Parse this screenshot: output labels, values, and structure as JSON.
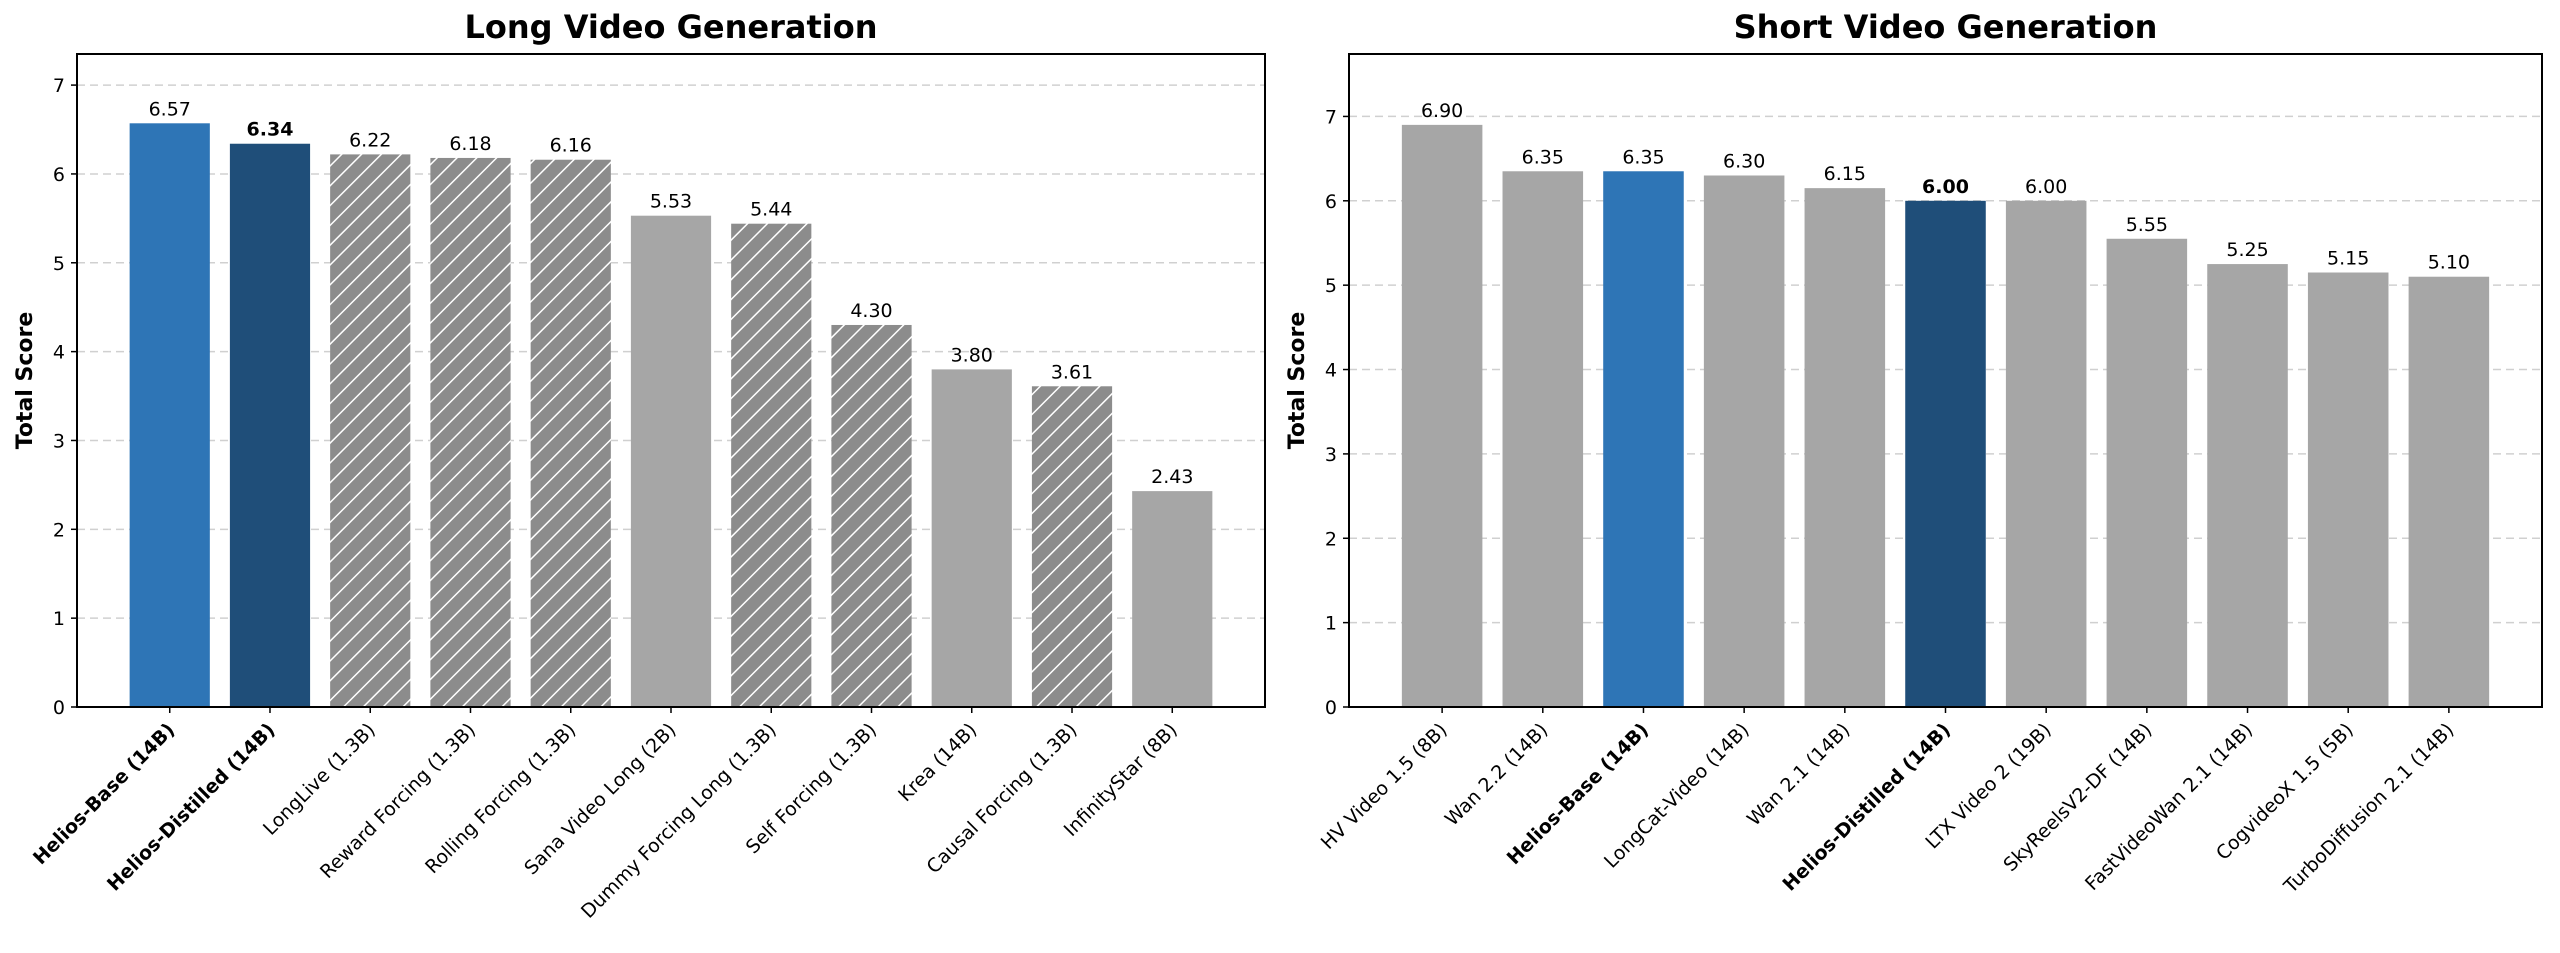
{
  "chart_data": [
    {
      "type": "bar",
      "title": "Long Video Generation",
      "y_label": "Total Score",
      "categories": [
        "Helios-Base (14B)",
        "Helios-Distilled (14B)",
        "LongLive (1.3B)",
        "Reward Forcing (1.3B)",
        "Rolling Forcing (1.3B)",
        "Sana Video Long (2B)",
        "Dummy Forcing Long (1.3B)",
        "Self Forcing (1.3B)",
        "Krea (14B)",
        "Causal Forcing (1.3B)",
        "InfinityStar (8B)"
      ],
      "values": [
        6.57,
        6.34,
        6.22,
        6.18,
        6.16,
        5.53,
        5.44,
        4.3,
        3.8,
        3.61,
        2.43
      ],
      "value_labels": [
        "6.57",
        "6.34",
        "6.22",
        "6.18",
        "6.16",
        "5.53",
        "5.44",
        "4.30",
        "3.80",
        "3.61",
        "2.43"
      ],
      "colors": [
        "#2e75b6",
        "#1f4e79",
        "#8c8c8c",
        "#8c8c8c",
        "#8c8c8c",
        "#a6a6a6",
        "#8c8c8c",
        "#8c8c8c",
        "#a6a6a6",
        "#8c8c8c",
        "#a6a6a6"
      ],
      "hatched": [
        false,
        false,
        true,
        true,
        true,
        false,
        true,
        true,
        false,
        true,
        false
      ],
      "bold_categories": [
        true,
        true,
        false,
        false,
        false,
        false,
        false,
        false,
        false,
        false,
        false
      ],
      "bold_value_labels": [
        false,
        true,
        false,
        false,
        false,
        false,
        false,
        false,
        false,
        false,
        false
      ],
      "ylim": [
        0,
        7.35
      ],
      "yticks": [
        0,
        1,
        2,
        3,
        4,
        5,
        6,
        7
      ],
      "grid": true
    },
    {
      "type": "bar",
      "title": "Short Video Generation",
      "y_label": "Total Score",
      "categories": [
        "HV Video 1.5 (8B)",
        "Wan 2.2 (14B)",
        "Helios-Base (14B)",
        "LongCat-Video (14B)",
        "Wan 2.1 (14B)",
        "Helios-Distilled (14B)",
        "LTX Video 2 (19B)",
        "SkyReelsV2-DF (14B)",
        "FastVideoWan 2.1 (14B)",
        "CogvideoX 1.5 (5B)",
        "TurboDiffusion 2.1 (14B)"
      ],
      "values": [
        6.9,
        6.35,
        6.35,
        6.3,
        6.15,
        6.0,
        6.0,
        5.55,
        5.25,
        5.15,
        5.1
      ],
      "value_labels": [
        "6.90",
        "6.35",
        "6.35",
        "6.30",
        "6.15",
        "6.00",
        "6.00",
        "5.55",
        "5.25",
        "5.15",
        "5.10"
      ],
      "colors": [
        "#a6a6a6",
        "#a6a6a6",
        "#2e75b6",
        "#a6a6a6",
        "#a6a6a6",
        "#1f4e79",
        "#a6a6a6",
        "#a6a6a6",
        "#a6a6a6",
        "#a6a6a6",
        "#a6a6a6"
      ],
      "hatched": [
        false,
        false,
        false,
        false,
        false,
        false,
        false,
        false,
        false,
        false,
        false
      ],
      "bold_categories": [
        false,
        false,
        true,
        false,
        false,
        true,
        false,
        false,
        false,
        false,
        false
      ],
      "bold_value_labels": [
        false,
        false,
        false,
        false,
        false,
        true,
        false,
        false,
        false,
        false,
        false
      ],
      "ylim": [
        0,
        7.74
      ],
      "yticks": [
        0,
        1,
        2,
        3,
        4,
        5,
        6,
        7
      ],
      "grid": true
    }
  ]
}
